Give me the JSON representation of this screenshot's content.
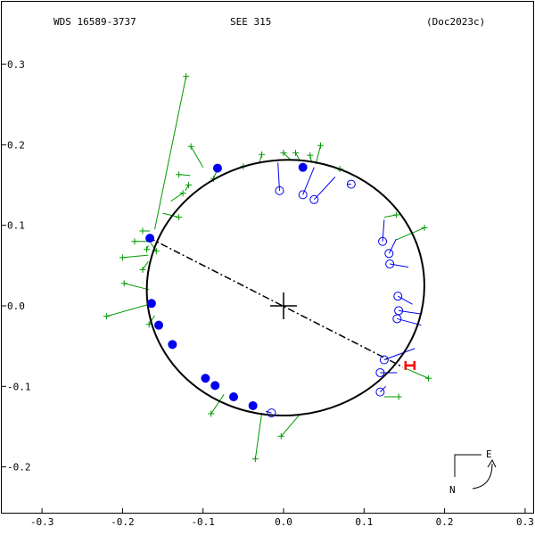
{
  "header": {
    "left": "WDS 16589-3737",
    "center": "SEE 315",
    "right": "(Doc2023c)"
  },
  "compass": {
    "east": "E",
    "north": "N"
  },
  "colors": {
    "orbit": "#000000",
    "filled_points": "#0000ee",
    "open_points": "#0000ee",
    "residual_lines": "#0000ee",
    "green_obs": "#009900",
    "red_marker": "#ff0000",
    "frame": "#000000"
  },
  "chart_data": {
    "type": "scatter",
    "title": "",
    "xlabel": "",
    "ylabel": "",
    "xlim": [
      -0.3,
      0.3
    ],
    "ylim": [
      -0.25,
      0.3
    ],
    "x_ticks": [
      {
        "v": -0.3,
        "label": "-0.3"
      },
      {
        "v": -0.2,
        "label": "-0.2"
      },
      {
        "v": -0.1,
        "label": "-0.1"
      },
      {
        "v": 0.0,
        "label": "0.0"
      },
      {
        "v": 0.1,
        "label": "0.1"
      },
      {
        "v": 0.2,
        "label": "0.2"
      },
      {
        "v": 0.3,
        "label": "0.3"
      }
    ],
    "y_ticks": [
      {
        "v": 0.3,
        "label": "0.3"
      },
      {
        "v": 0.2,
        "label": "0.2"
      },
      {
        "v": 0.1,
        "label": "0.1"
      },
      {
        "v": 0.0,
        "label": "0.0"
      },
      {
        "v": -0.1,
        "label": "-0.1"
      },
      {
        "v": -0.2,
        "label": "-0.2"
      }
    ],
    "grid": false,
    "primary": {
      "x": 0.0,
      "y": 0.0
    },
    "orbit": {
      "center": [
        0.0025,
        0.0225
      ],
      "semi_axes": [
        0.1725,
        0.1586
      ],
      "rotation_deg": -6
    },
    "line_of_nodes": {
      "from": [
        -0.168,
        0.085
      ],
      "to": [
        0.148,
        -0.076
      ]
    },
    "red_marker": {
      "x": 0.157,
      "y": -0.074
    },
    "filled_points": [
      {
        "x": 0.024,
        "y": 0.172,
        "ox": 0.024,
        "oy": 0.175
      },
      {
        "x": -0.082,
        "y": 0.171,
        "ox": -0.081,
        "oy": 0.172
      },
      {
        "x": -0.166,
        "y": 0.084,
        "ox": -0.168,
        "oy": 0.083
      },
      {
        "x": -0.164,
        "y": 0.003,
        "ox": -0.165,
        "oy": 0.003
      },
      {
        "x": -0.155,
        "y": -0.024,
        "ox": -0.157,
        "oy": -0.024
      },
      {
        "x": -0.138,
        "y": -0.048,
        "ox": -0.139,
        "oy": -0.049
      },
      {
        "x": -0.097,
        "y": -0.09,
        "ox": -0.098,
        "oy": -0.091
      },
      {
        "x": -0.085,
        "y": -0.099,
        "ox": -0.086,
        "oy": -0.1
      },
      {
        "x": -0.062,
        "y": -0.113,
        "ox": -0.063,
        "oy": -0.114
      },
      {
        "x": -0.038,
        "y": -0.124,
        "ox": -0.039,
        "oy": -0.125
      }
    ],
    "open_points": [
      {
        "x": -0.005,
        "y": 0.143,
        "ox": -0.007,
        "oy": 0.178
      },
      {
        "x": 0.024,
        "y": 0.138,
        "ox": 0.038,
        "oy": 0.172
      },
      {
        "x": 0.038,
        "y": 0.132,
        "ox": 0.064,
        "oy": 0.16
      },
      {
        "x": 0.084,
        "y": 0.151,
        "ox": 0.079,
        "oy": 0.151
      },
      {
        "x": 0.123,
        "y": 0.08,
        "ox": 0.125,
        "oy": 0.107
      },
      {
        "x": 0.131,
        "y": 0.065,
        "ox": 0.14,
        "oy": 0.083
      },
      {
        "x": 0.132,
        "y": 0.052,
        "ox": 0.155,
        "oy": 0.048
      },
      {
        "x": 0.142,
        "y": 0.012,
        "ox": 0.16,
        "oy": 0.002
      },
      {
        "x": 0.143,
        "y": -0.006,
        "ox": 0.17,
        "oy": -0.01
      },
      {
        "x": 0.141,
        "y": -0.016,
        "ox": 0.171,
        "oy": -0.024
      },
      {
        "x": 0.125,
        "y": -0.067,
        "ox": 0.163,
        "oy": -0.053
      },
      {
        "x": 0.12,
        "y": -0.083,
        "ox": 0.141,
        "oy": -0.083
      },
      {
        "x": 0.12,
        "y": -0.107,
        "ox": 0.127,
        "oy": -0.1
      },
      {
        "x": -0.015,
        "y": -0.133,
        "ox": -0.022,
        "oy": -0.131
      }
    ],
    "green_obs": [
      {
        "x": -0.121,
        "y": 0.285,
        "ox": -0.16,
        "oy": 0.095
      },
      {
        "x": -0.115,
        "y": 0.198,
        "ox": -0.1,
        "oy": 0.172
      },
      {
        "x": -0.13,
        "y": 0.163,
        "ox": -0.116,
        "oy": 0.162
      },
      {
        "x": -0.118,
        "y": 0.15,
        "ox": -0.122,
        "oy": 0.143
      },
      {
        "x": -0.125,
        "y": 0.14,
        "ox": -0.14,
        "oy": 0.13
      },
      {
        "x": -0.13,
        "y": 0.11,
        "ox": -0.15,
        "oy": 0.115
      },
      {
        "x": -0.087,
        "y": 0.158,
        "ox": -0.082,
        "oy": 0.17
      },
      {
        "x": -0.05,
        "y": 0.173,
        "ox": -0.045,
        "oy": 0.175
      },
      {
        "x": -0.027,
        "y": 0.188,
        "ox": -0.03,
        "oy": 0.178
      },
      {
        "x": 0.0,
        "y": 0.19,
        "ox": 0.008,
        "oy": 0.182
      },
      {
        "x": 0.015,
        "y": 0.19,
        "ox": 0.02,
        "oy": 0.181
      },
      {
        "x": 0.033,
        "y": 0.187,
        "ox": 0.035,
        "oy": 0.178
      },
      {
        "x": 0.046,
        "y": 0.199,
        "ox": 0.04,
        "oy": 0.176
      },
      {
        "x": 0.07,
        "y": 0.17,
        "ox": 0.068,
        "oy": 0.168
      },
      {
        "x": -0.175,
        "y": 0.093,
        "ox": -0.166,
        "oy": 0.093
      },
      {
        "x": -0.185,
        "y": 0.08,
        "ox": -0.167,
        "oy": 0.08
      },
      {
        "x": -0.17,
        "y": 0.07,
        "ox": -0.168,
        "oy": 0.075
      },
      {
        "x": -0.158,
        "y": 0.068,
        "ox": -0.165,
        "oy": 0.078
      },
      {
        "x": -0.2,
        "y": 0.06,
        "ox": -0.168,
        "oy": 0.063
      },
      {
        "x": -0.175,
        "y": 0.045,
        "ox": -0.168,
        "oy": 0.055
      },
      {
        "x": -0.198,
        "y": 0.028,
        "ox": -0.167,
        "oy": 0.02
      },
      {
        "x": -0.22,
        "y": -0.013,
        "ox": -0.163,
        "oy": 0.003
      },
      {
        "x": -0.167,
        "y": -0.023,
        "ox": -0.16,
        "oy": -0.012
      },
      {
        "x": -0.09,
        "y": -0.134,
        "ox": -0.074,
        "oy": -0.11
      },
      {
        "x": -0.035,
        "y": -0.19,
        "ox": -0.027,
        "oy": -0.133
      },
      {
        "x": -0.003,
        "y": -0.162,
        "ox": 0.02,
        "oy": -0.135
      },
      {
        "x": 0.14,
        "y": 0.113,
        "ox": 0.125,
        "oy": 0.11
      },
      {
        "x": 0.175,
        "y": 0.097,
        "ox": 0.14,
        "oy": 0.082
      },
      {
        "x": 0.18,
        "y": -0.09,
        "ox": 0.15,
        "oy": -0.077
      },
      {
        "x": 0.143,
        "y": -0.113,
        "ox": 0.125,
        "oy": -0.113
      }
    ]
  }
}
